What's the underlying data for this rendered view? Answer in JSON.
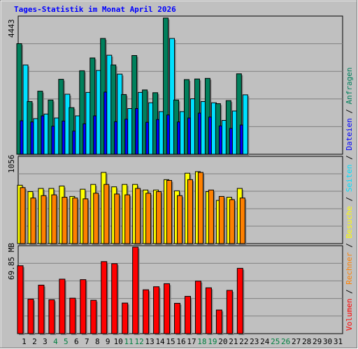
{
  "title": "Tages-Statistik im Monat April 2026",
  "colors": {
    "title": "#0000ff",
    "background": "#c0c0c0",
    "frame_light": "#ffffff",
    "frame_dark": "#808080",
    "weekday_label": "#000000",
    "weekend_label": "#008040",
    "anfragen": "#00805c",
    "dateien": "#0000ff",
    "seiten": "#00e0ff",
    "besuche": "#ffff00",
    "rechner": "#ff8000",
    "volumen": "#ff0000"
  },
  "chart_data": [
    {
      "type": "bar",
      "name": "requests-panel",
      "y_max_label": "4443",
      "ylim": [
        0,
        4443
      ],
      "grid": true,
      "categories": [
        "1",
        "2",
        "3",
        "4",
        "5",
        "6",
        "7",
        "8",
        "9",
        "10",
        "11",
        "12",
        "13",
        "14",
        "15",
        "16",
        "17",
        "18",
        "19",
        "20",
        "21",
        "22",
        "23",
        "24",
        "25",
        "26",
        "27",
        "28",
        "29",
        "30",
        "31"
      ],
      "weekend_days": [
        "4",
        "5",
        "11",
        "12",
        "18",
        "19",
        "25",
        "26"
      ],
      "series": [
        {
          "name": "Anfragen",
          "color": "#00805c",
          "values": [
            3630,
            1730,
            2070,
            1780,
            2460,
            1530,
            2740,
            3160,
            3800,
            2930,
            1960,
            3240,
            2110,
            2020,
            4470,
            1780,
            2450,
            2470,
            2490,
            1660,
            1760,
            2640,
            null,
            null,
            null,
            null,
            null,
            null,
            null,
            null,
            null
          ]
        },
        {
          "name": "Dateien",
          "color": "#0000ff",
          "values": [
            1100,
            1060,
            1260,
            920,
            1090,
            760,
            1000,
            1260,
            2040,
            1070,
            1150,
            1500,
            1050,
            1140,
            1290,
            1060,
            1190,
            1350,
            1220,
            930,
            850,
            960,
            null,
            null,
            null,
            null,
            null,
            null,
            null,
            null,
            null
          ]
        },
        {
          "name": "Seiten",
          "color": "#00e0ff",
          "values": [
            2930,
            1170,
            1320,
            1190,
            1970,
            1260,
            2030,
            2750,
            3250,
            2630,
            1500,
            2030,
            1690,
            1400,
            3800,
            1400,
            1820,
            1730,
            1690,
            1110,
            1420,
            1950,
            null,
            null,
            null,
            null,
            null,
            null,
            null,
            null,
            null
          ]
        }
      ]
    },
    {
      "type": "bar",
      "name": "visits-panel",
      "y_max_label": "1056",
      "ylim": [
        0,
        1056
      ],
      "grid": true,
      "series": [
        {
          "name": "Besuche",
          "color": "#ffff00",
          "values": [
            730,
            650,
            690,
            690,
            720,
            590,
            680,
            740,
            890,
            710,
            740,
            740,
            670,
            670,
            800,
            660,
            880,
            900,
            650,
            540,
            580,
            690,
            null,
            null,
            null,
            null,
            null,
            null,
            null,
            null,
            null
          ]
        },
        {
          "name": "Rechner",
          "color": "#ff8000",
          "values": [
            700,
            570,
            600,
            610,
            580,
            570,
            560,
            630,
            740,
            620,
            610,
            690,
            630,
            650,
            790,
            600,
            800,
            890,
            670,
            590,
            550,
            570,
            null,
            null,
            null,
            null,
            null,
            null,
            null,
            null,
            null
          ]
        }
      ]
    },
    {
      "type": "bar",
      "name": "volume-panel",
      "y_max_label": "69.85 MB",
      "ylim": [
        0,
        69.85
      ],
      "grid": true,
      "series": [
        {
          "name": "Volumen",
          "color": "#ff0000",
          "values": [
            55.7,
            28.3,
            39.8,
            27.8,
            44.7,
            29.1,
            44.3,
            27.4,
            59.1,
            57.4,
            25.1,
            71.3,
            36.0,
            38.5,
            41.0,
            24.9,
            30.6,
            43.1,
            37.6,
            19.4,
            35.5,
            53.6,
            null,
            null,
            null,
            null,
            null,
            null,
            null,
            null,
            null
          ]
        }
      ]
    }
  ],
  "right_legend": {
    "panel1": [
      {
        "text": "Anfragen",
        "color": "#00805c"
      },
      {
        "text": "Dateien",
        "color": "#0000ff"
      },
      {
        "text": "Seiten",
        "color": "#00e0ff"
      },
      {
        "text": "Besuche",
        "color": "#ffff00"
      },
      {
        "text": "Rechner",
        "color": "#ff8000"
      },
      {
        "text": "Volumen",
        "color": "#ff0000"
      }
    ],
    "separator": " / "
  }
}
